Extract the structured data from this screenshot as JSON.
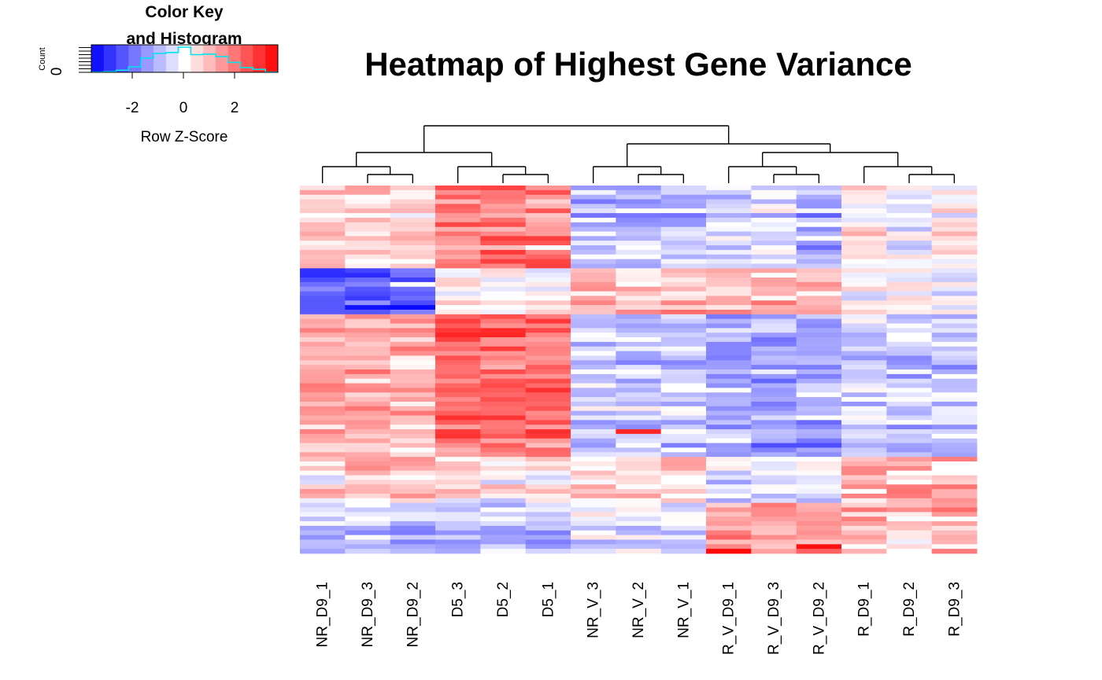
{
  "chart_data": {
    "type": "heatmap",
    "title": "Heatmap of Highest Gene Variance",
    "columns": [
      "NR_D9_1",
      "NR_D9_3",
      "NR_D9_2",
      "D5_3",
      "D5_2",
      "D5_1",
      "NR_V_3",
      "NR_V_2",
      "NR_V_1",
      "R_V_D9_1",
      "R_V_D9_3",
      "R_V_D9_2",
      "R_D9_1",
      "R_D9_2",
      "R_D9_3"
    ],
    "n_rows": 80,
    "value_range": [
      -3.5,
      3.5
    ],
    "colors": {
      "low": "#0000ff",
      "mid": "#ffffff",
      "high": "#ff0000"
    },
    "color_key": {
      "title_line1": "Color Key",
      "title_line2": "and Histogram",
      "xlabel": "Row Z-Score",
      "ylabel": "Count",
      "y_tick": "0",
      "ticks": [
        "-2",
        "0",
        "2"
      ],
      "histogram_color": "#00e5ee"
    },
    "column_dendrogram": "((((NR_D9_1,(NR_D9_3,NR_D9_2)),(D5_3,(D5_2,D5_1))),((NR_V_3,(NR_V_2,NR_V_1)),((R_V_D9_1,(R_V_D9_3,R_V_D9_2)),(R_D9_1,(R_D9_2,R_D9_3))))))",
    "row_blocks": [
      {
        "rows": [
          0,
          17
        ],
        "values": [
          0.6,
          0.6,
          0.6,
          1.8,
          1.8,
          1.8,
          -0.9,
          -0.9,
          -0.9,
          -0.6,
          -0.3,
          -1.0,
          0.3,
          -0.2,
          0.2
        ]
      },
      {
        "rows": [
          18,
          27
        ],
        "values": [
          -2.2,
          -2.2,
          -2.2,
          0.1,
          0.1,
          0.1,
          1.0,
          1.0,
          1.0,
          1.0,
          1.0,
          1.0,
          0.0,
          0.3,
          0.0
        ]
      },
      {
        "rows": [
          28,
          58
        ],
        "values": [
          1.0,
          1.0,
          1.0,
          2.0,
          2.0,
          2.0,
          -0.8,
          -0.8,
          -0.8,
          -1.3,
          -1.3,
          -1.3,
          -0.8,
          -0.9,
          -0.9
        ]
      },
      {
        "rows": [
          59,
          68
        ],
        "values": [
          0.4,
          0.9,
          0.9,
          0.4,
          0.2,
          0.2,
          0.6,
          0.6,
          0.6,
          -0.5,
          -0.5,
          -0.3,
          1.2,
          1.2,
          1.2
        ]
      },
      {
        "rows": [
          69,
          79
        ],
        "values": [
          -1.0,
          -1.0,
          -1.0,
          -0.9,
          -0.9,
          -0.9,
          -0.4,
          -0.4,
          -0.4,
          1.3,
          1.3,
          1.3,
          0.8,
          0.8,
          1.0
        ]
      }
    ]
  }
}
